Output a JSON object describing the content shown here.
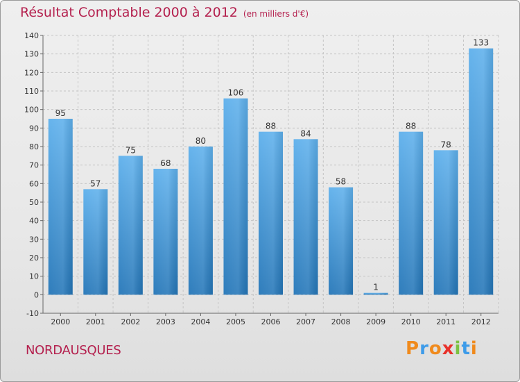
{
  "header": {
    "title": "Résultat Comptable 2000 à 2012",
    "subtitle": "(en milliers d'€)"
  },
  "entity": "NORDAUSQUES",
  "brand": {
    "letters": [
      "P",
      "r",
      "o",
      "x",
      "i",
      "t",
      "i"
    ],
    "colors": [
      "#f08a1c",
      "#3d9be9",
      "#f08a1c",
      "#e8302a",
      "#7cc242",
      "#3d9be9",
      "#f08a1c"
    ]
  },
  "colors": {
    "bar_light": "#5eb0ec",
    "bar_dark": "#2476b8",
    "title": "#b4204e"
  },
  "chart_data": {
    "type": "bar",
    "title": "Résultat Comptable 2000 à 2012",
    "categories": [
      "2000",
      "2001",
      "2002",
      "2003",
      "2004",
      "2005",
      "2006",
      "2007",
      "2008",
      "2009",
      "2010",
      "2011",
      "2012"
    ],
    "values": [
      95,
      57,
      75,
      68,
      80,
      106,
      88,
      84,
      58,
      1,
      88,
      78,
      133
    ],
    "ylim": [
      -10,
      140
    ],
    "yticks": [
      -10,
      0,
      10,
      20,
      30,
      40,
      50,
      60,
      70,
      80,
      90,
      100,
      110,
      120,
      130,
      140
    ],
    "xlabel": "",
    "ylabel": "",
    "grid": true
  }
}
